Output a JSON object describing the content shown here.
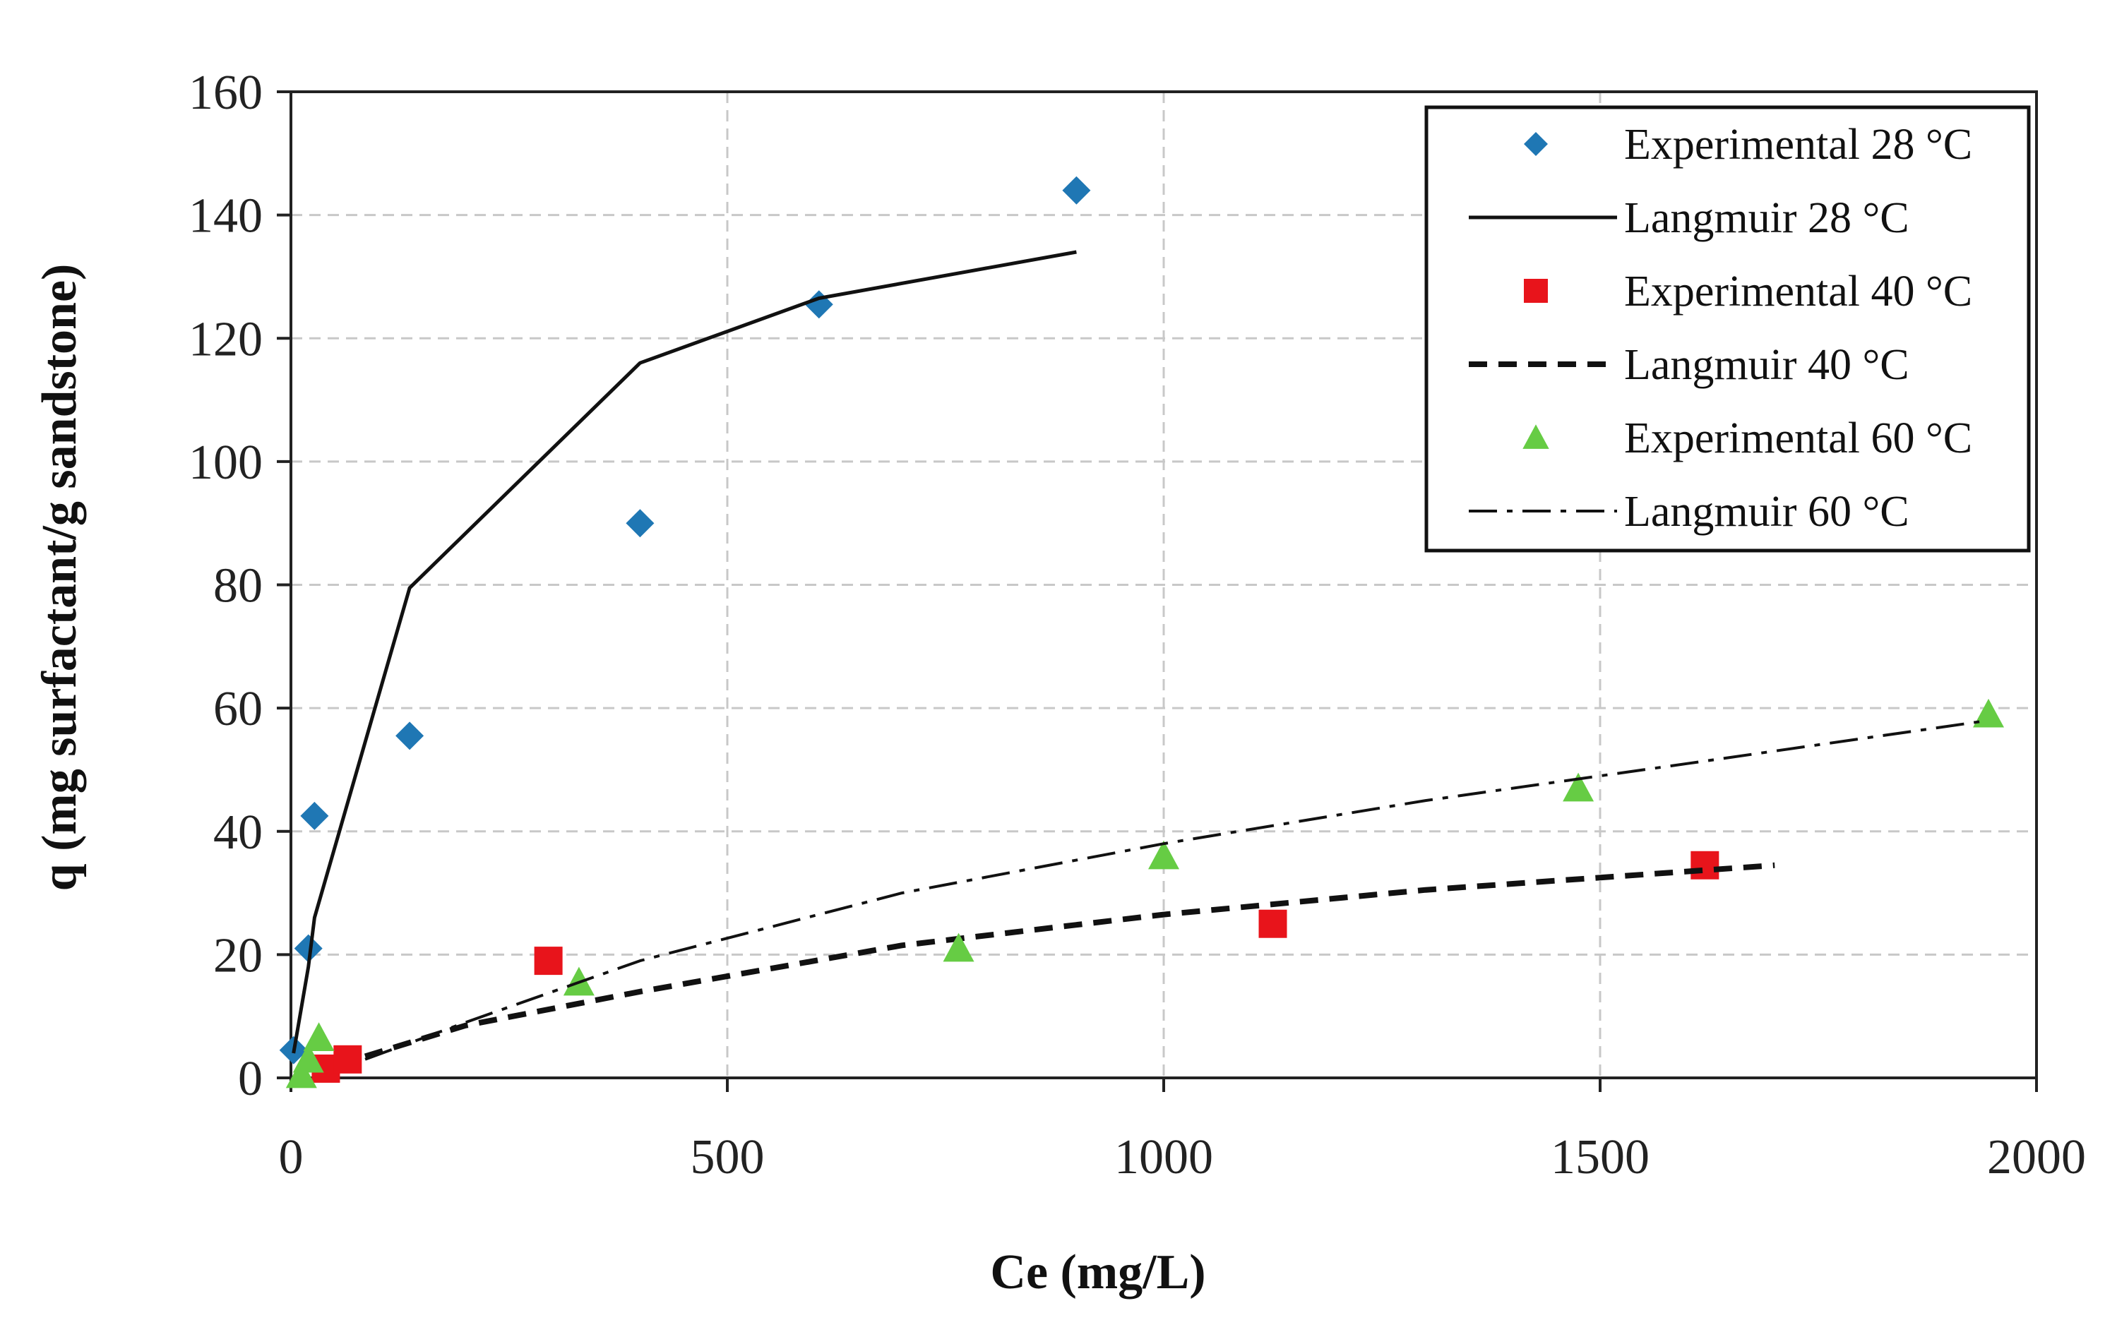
{
  "chart_data": {
    "type": "scatter",
    "title": "",
    "xlabel": "Ce (mg/L)",
    "ylabel": "q (mg surfactant/g sandstone)",
    "xlim": [
      0,
      2000
    ],
    "ylim": [
      0,
      160
    ],
    "xticks": [
      0,
      500,
      1000,
      1500,
      2000
    ],
    "yticks": [
      0,
      20,
      40,
      60,
      80,
      100,
      120,
      140,
      160
    ],
    "grid": true,
    "legend_position": "top-right",
    "series": [
      {
        "name": "Experimental 28 °C",
        "kind": "points",
        "marker": "diamond",
        "color": "#1f77b4",
        "x": [
          3,
          20,
          27,
          136,
          400,
          605,
          900
        ],
        "y": [
          4.5,
          21,
          42.5,
          55.5,
          90,
          125.5,
          144
        ]
      },
      {
        "name": "Langmuir 28 °C",
        "kind": "line",
        "dash": "solid",
        "color": "#111111",
        "x": [
          3,
          20,
          27,
          136,
          400,
          605,
          900
        ],
        "y": [
          4,
          18,
          26,
          79.5,
          116,
          126.5,
          134
        ]
      },
      {
        "name": "Experimental 40 °C",
        "kind": "points",
        "marker": "square",
        "color": "#e8141b",
        "x": [
          40,
          65,
          295,
          1125,
          1620
        ],
        "y": [
          1.5,
          3,
          19,
          25,
          34.5
        ]
      },
      {
        "name": "Langmuir 40 °C",
        "kind": "line",
        "dash": "dashed",
        "color": "#111111",
        "x": [
          85,
          200,
          400,
          700,
          1000,
          1300,
          1700
        ],
        "y": [
          3.5,
          8.5,
          14,
          21.5,
          26.5,
          30.5,
          34.5
        ]
      },
      {
        "name": "Experimental 60 °C",
        "kind": "points",
        "marker": "triangle",
        "color": "#66cc44",
        "x": [
          12,
          20,
          32,
          330,
          765,
          1000,
          1475,
          1945
        ],
        "y": [
          0.5,
          3,
          6.5,
          15.5,
          21,
          36,
          47,
          59
        ]
      },
      {
        "name": "Langmuir 60 °C",
        "kind": "line",
        "dash": "dashdot",
        "color": "#111111",
        "x": [
          85,
          200,
          400,
          700,
          1000,
          1300,
          1600,
          1945
        ],
        "y": [
          3,
          9,
          19,
          30,
          38,
          45,
          51,
          58
        ]
      }
    ]
  }
}
